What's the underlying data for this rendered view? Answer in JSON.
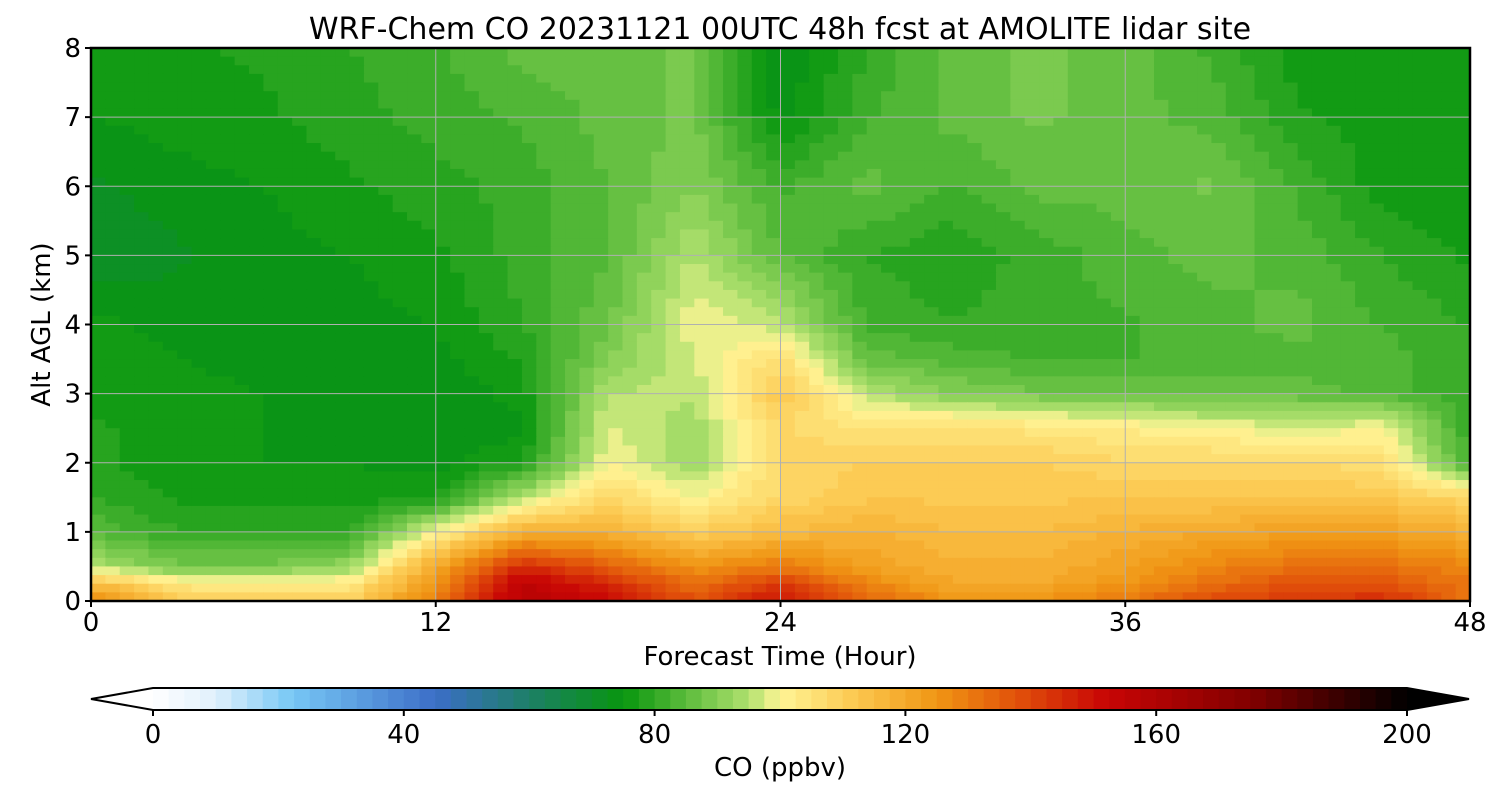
{
  "chart_data": {
    "type": "heatmap",
    "title": "WRF-Chem CO  20231121 00UTC 48h fcst at AMOLITE lidar site",
    "xlabel": "Forecast Time (Hour)",
    "ylabel": "Alt AGL (km)",
    "xlim": [
      0,
      48
    ],
    "ylim": [
      0,
      8
    ],
    "x_ticks": [
      "0",
      "12",
      "24",
      "36",
      "48"
    ],
    "y_ticks": [
      "0",
      "1",
      "2",
      "3",
      "4",
      "5",
      "6",
      "7",
      "8"
    ],
    "grid": true,
    "x": [
      0,
      3,
      6,
      9,
      12,
      15,
      18,
      21,
      24,
      27,
      30,
      33,
      36,
      39,
      42,
      45,
      48
    ],
    "y": [
      0,
      0.25,
      0.5,
      1,
      1.5,
      2,
      2.5,
      3,
      3.5,
      4,
      5,
      6,
      7,
      8
    ],
    "z": [
      [
        128,
        112,
        110,
        110,
        130,
        158,
        152,
        138,
        150,
        135,
        125,
        125,
        130,
        140,
        142,
        145,
        132
      ],
      [
        115,
        103,
        102,
        103,
        125,
        155,
        145,
        132,
        142,
        128,
        120,
        120,
        125,
        132,
        138,
        138,
        130
      ],
      [
        95,
        88,
        88,
        92,
        120,
        145,
        135,
        125,
        130,
        122,
        118,
        118,
        122,
        128,
        132,
        132,
        128
      ],
      [
        85,
        80,
        80,
        80,
        100,
        118,
        118,
        110,
        115,
        118,
        115,
        115,
        118,
        120,
        122,
        122,
        118
      ],
      [
        80,
        77,
        76,
        76,
        77,
        95,
        108,
        100,
        108,
        112,
        112,
        112,
        112,
        112,
        112,
        112,
        108
      ],
      [
        78,
        76,
        75,
        75,
        74,
        78,
        100,
        92,
        108,
        110,
        110,
        110,
        108,
        108,
        108,
        106,
        82
      ],
      [
        78,
        76,
        75,
        74,
        73,
        74,
        98,
        93,
        108,
        105,
        106,
        104,
        102,
        100,
        98,
        100,
        80
      ],
      [
        77,
        76,
        75,
        74,
        73,
        76,
        95,
        96,
        112,
        95,
        90,
        88,
        88,
        86,
        86,
        84,
        80
      ],
      [
        77,
        75,
        74,
        74,
        74,
        78,
        90,
        97,
        106,
        86,
        84,
        82,
        82,
        84,
        84,
        84,
        80
      ],
      [
        76,
        74,
        74,
        74,
        75,
        80,
        87,
        100,
        96,
        82,
        80,
        82,
        82,
        84,
        86,
        82,
        80
      ],
      [
        70,
        72,
        74,
        75,
        77,
        81,
        85,
        95,
        85,
        80,
        78,
        81,
        84,
        86,
        84,
        80,
        77
      ],
      [
        72,
        74,
        75,
        77,
        79,
        81,
        85,
        90,
        82,
        86,
        82,
        86,
        86,
        88,
        82,
        76,
        75
      ],
      [
        75,
        76,
        77,
        79,
        81,
        83,
        86,
        88,
        74,
        82,
        86,
        88,
        86,
        84,
        78,
        76,
        76
      ],
      [
        76,
        77,
        78,
        80,
        82,
        86,
        86,
        88,
        72,
        80,
        86,
        88,
        86,
        82,
        76,
        76,
        76
      ]
    ]
  },
  "colorbar": {
    "label": "CO  (ppbv)",
    "min": 0,
    "max": 200,
    "tick_values": [
      0,
      40,
      80,
      120,
      160,
      200
    ],
    "tick_labels": [
      "0",
      "40",
      "80",
      "120",
      "160",
      "200"
    ],
    "extend": "both"
  }
}
